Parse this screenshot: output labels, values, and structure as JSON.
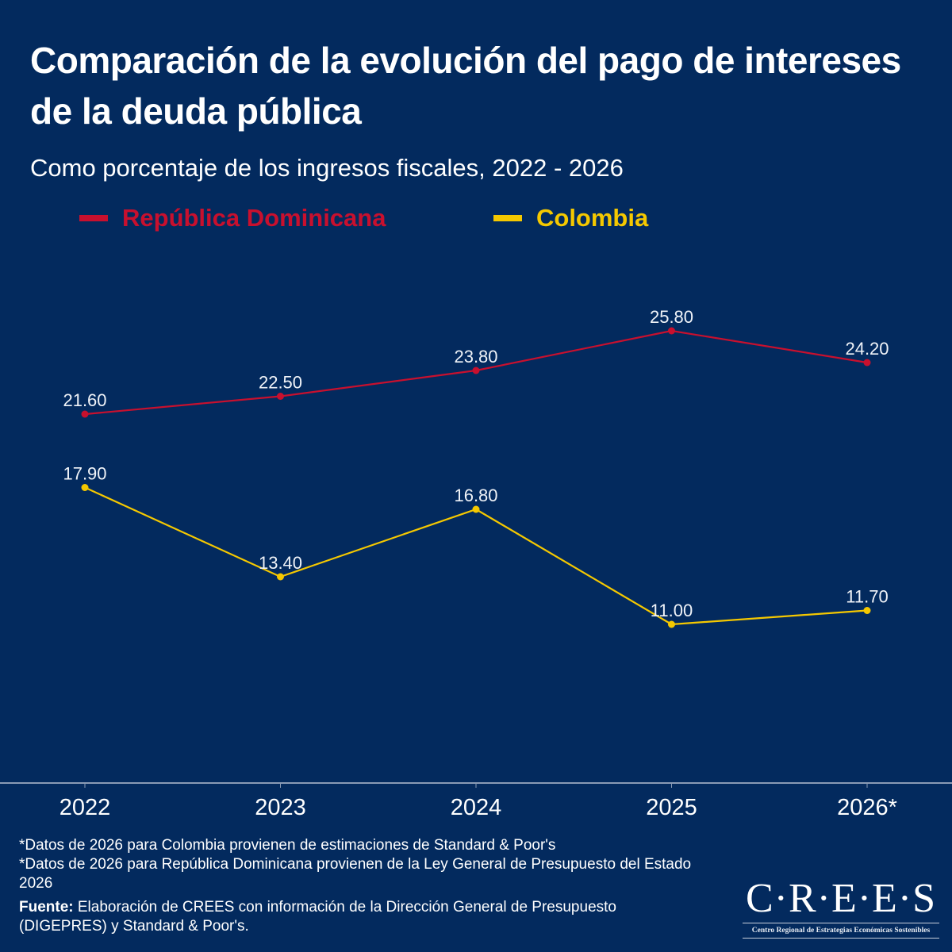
{
  "header": {
    "title": "Comparación de la evolución del pago de intereses de la deuda pública",
    "subtitle": "Como porcentaje de los ingresos fiscales, 2022 - 2026"
  },
  "colors": {
    "background": "#032a5e",
    "republica_dominicana": "#c8102e",
    "colombia": "#f5c800",
    "text": "#ffffff",
    "axis": "#8a9bb5"
  },
  "chart_data": {
    "type": "line",
    "title": "Comparación de la evolución del pago de intereses de la deuda pública",
    "subtitle": "Como porcentaje de los ingresos fiscales, 2022 - 2026",
    "xlabel": "",
    "ylabel": "",
    "categories": [
      "2022",
      "2023",
      "2024",
      "2025",
      "2026*"
    ],
    "series": [
      {
        "name": "República Dominicana",
        "color": "#c8102e",
        "values": [
          21.6,
          22.5,
          23.8,
          25.8,
          24.2
        ],
        "labels": [
          "21.60",
          "22.50",
          "23.80",
          "25.80",
          "24.20"
        ]
      },
      {
        "name": "Colombia",
        "color": "#f5c800",
        "values": [
          17.9,
          13.4,
          16.8,
          11.0,
          11.7
        ],
        "labels": [
          "17.90",
          "13.40",
          "16.80",
          "11.00",
          "11.70"
        ]
      }
    ],
    "ylim": [
      3,
      29
    ],
    "grid": false,
    "y_axis_visible": false,
    "legend_position": "top-left",
    "data_labels": true
  },
  "footer": {
    "notes": [
      "*Datos de 2026 para Colombia provienen de estimaciones de Standard & Poor's",
      "*Datos de 2026 para República Dominicana provienen de la Ley General de Presupuesto del Estado 2026"
    ],
    "source_label": "Fuente:",
    "source_text": " Elaboración de CREES con información de la Dirección General de Presupuesto (DIGEPRES) y Standard & Poor's."
  },
  "logo": {
    "mark": "C·R·E·E·S",
    "subtitle": "Centro Regional de Estrategias Económicas Sostenibles"
  }
}
